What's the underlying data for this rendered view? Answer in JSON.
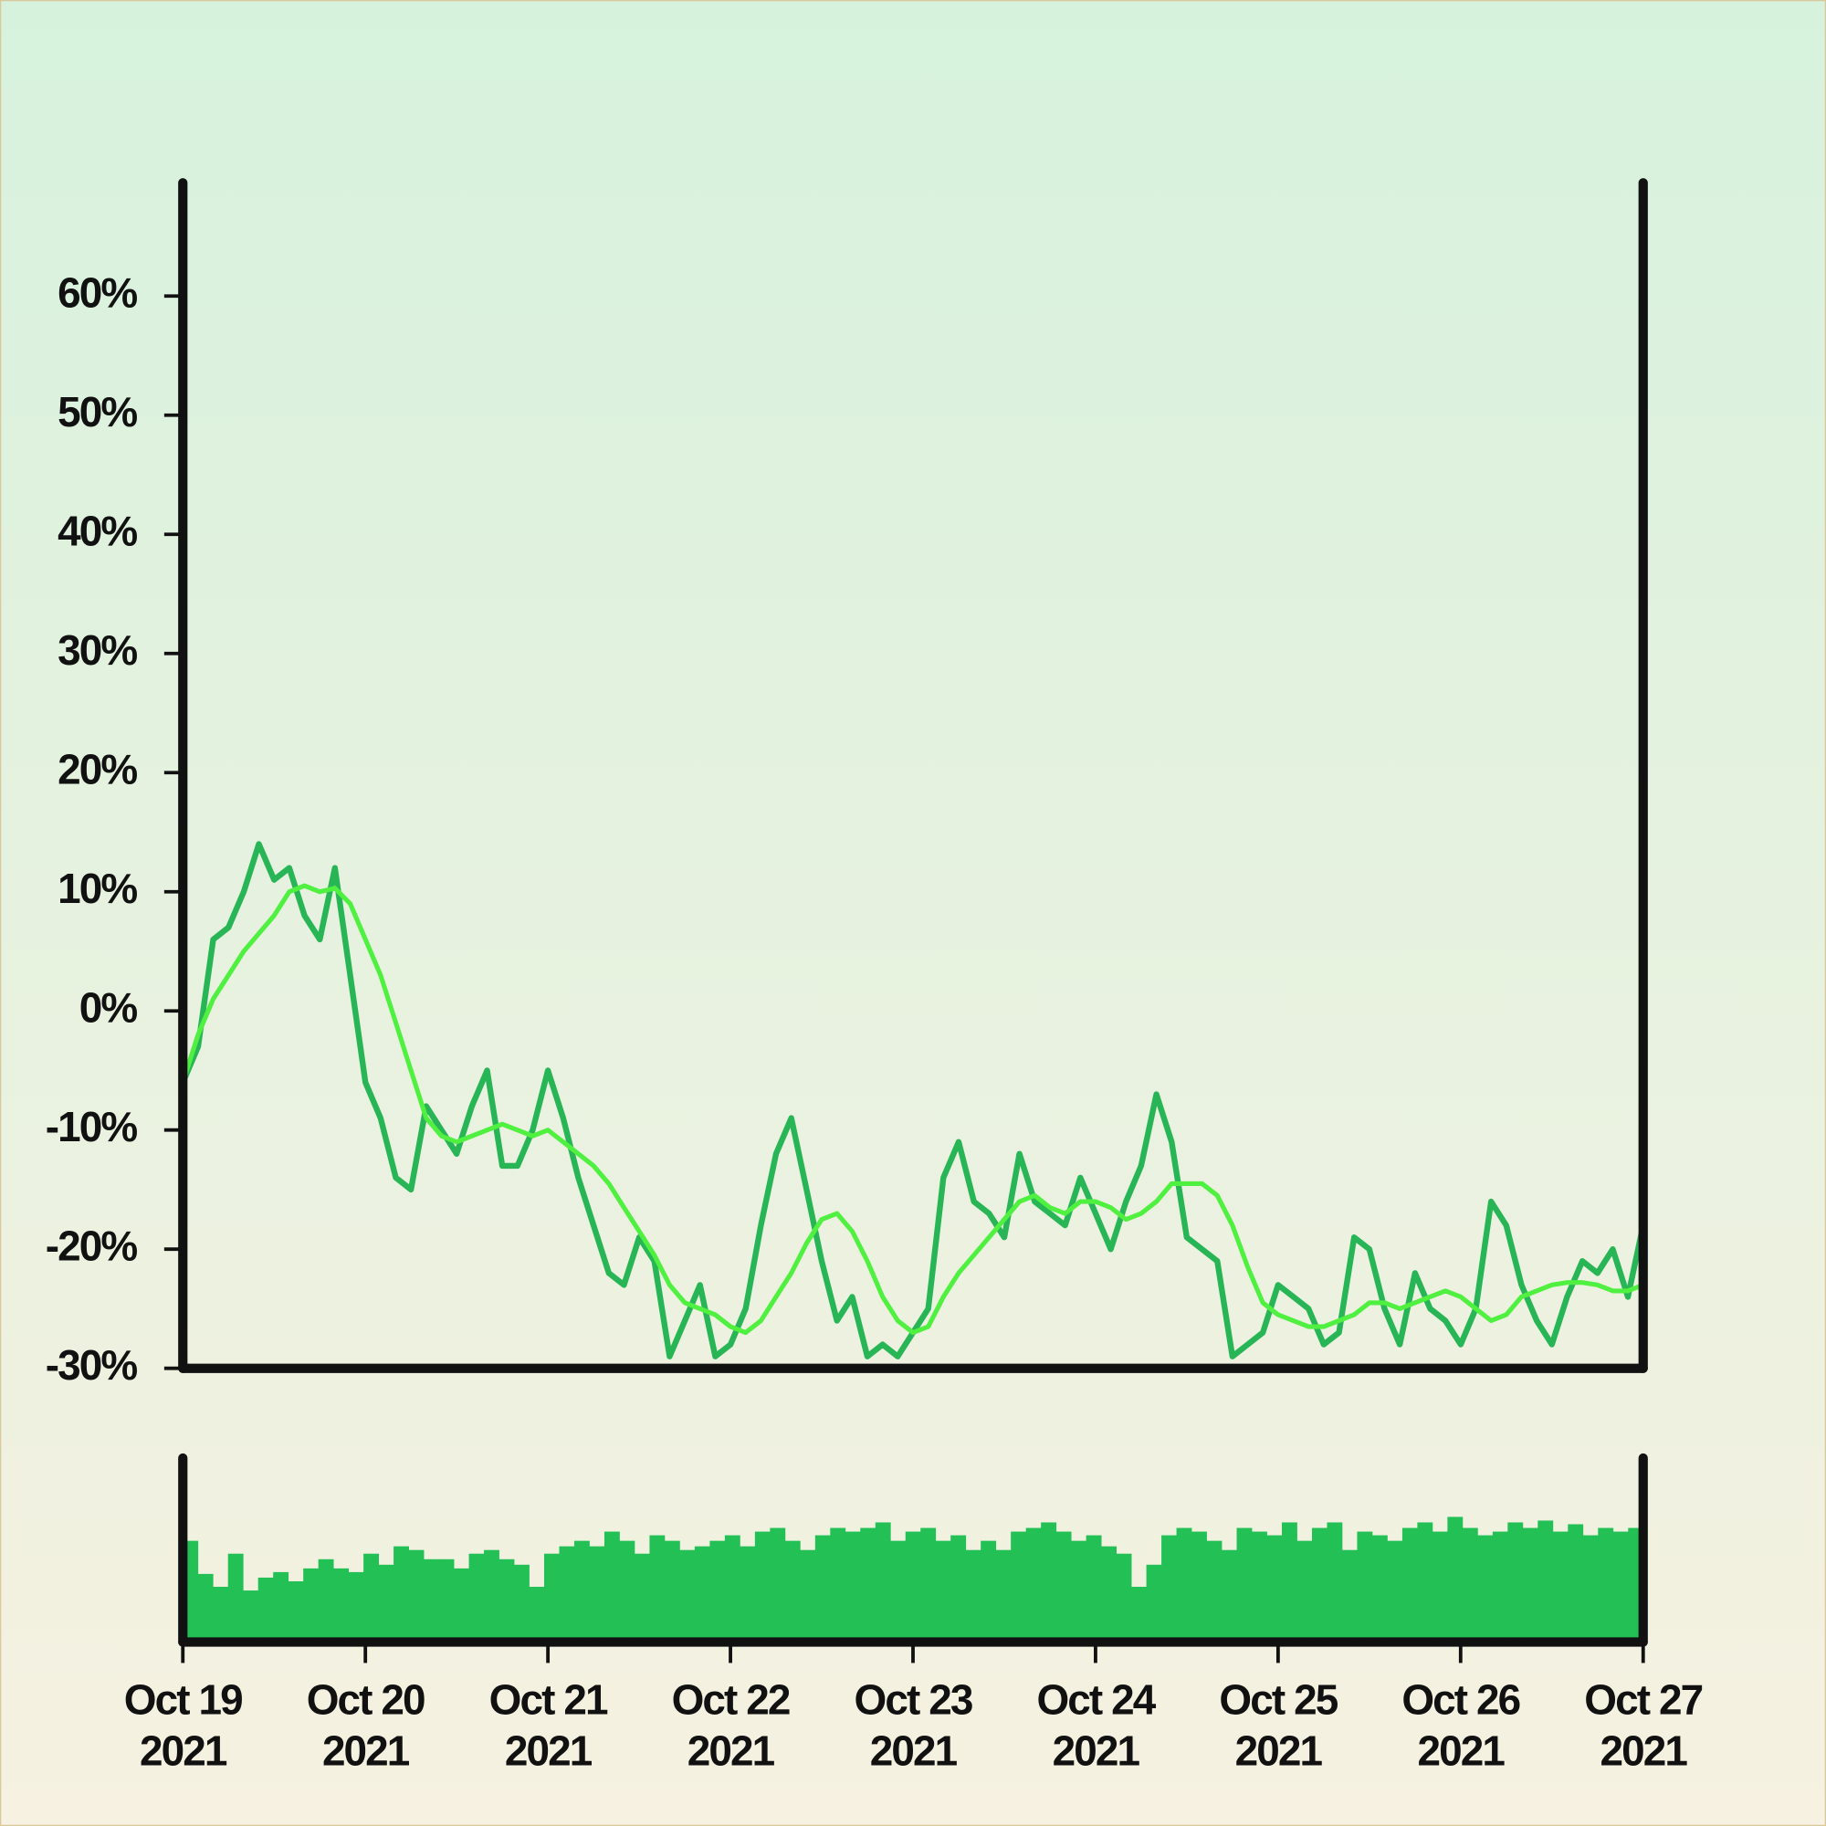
{
  "chart_data": [
    {
      "type": "line",
      "xlim": [
        "2021-10-19",
        "2021-10-27"
      ],
      "ylim": [
        -30,
        69.5
      ],
      "yticks": [
        {
          "value": -30,
          "label": "-30%"
        },
        {
          "value": -20,
          "label": "-20%"
        },
        {
          "value": -10,
          "label": "-10%"
        },
        {
          "value": 0,
          "label": "0%"
        },
        {
          "value": 10,
          "label": "10%"
        },
        {
          "value": 20,
          "label": "20%"
        },
        {
          "value": 30,
          "label": "30%"
        },
        {
          "value": 40,
          "label": "40%"
        },
        {
          "value": 50,
          "label": "50%"
        },
        {
          "value": 60,
          "label": "60%"
        }
      ],
      "series": [
        {
          "color": "#27b556",
          "values": [
            -6,
            -3,
            6,
            7,
            10,
            14,
            11,
            12,
            8,
            6,
            12,
            3,
            -6,
            -9,
            -14,
            -15,
            -8,
            -10,
            -12,
            -8,
            -5,
            -13,
            -13,
            -10,
            -5,
            -9,
            -14,
            -18,
            -22,
            -23,
            -19,
            -21,
            -29,
            -26,
            -23,
            -29,
            -28,
            -25,
            -18,
            -12,
            -9,
            -15,
            -21,
            -26,
            -24,
            -29,
            -28,
            -29,
            -27,
            -25,
            -14,
            -11,
            -16,
            -17,
            -19,
            -12,
            -16,
            -17,
            -18,
            -14,
            -17,
            -20,
            -16,
            -13,
            -7,
            -11,
            -19,
            -20,
            -21,
            -29,
            -28,
            -27,
            -23,
            -24,
            -25,
            -28,
            -27,
            -19,
            -20,
            -25,
            -28,
            -22,
            -25,
            -26,
            -28,
            -25,
            -16,
            -18,
            -23,
            -26,
            -28,
            -24,
            -21,
            -22,
            -20,
            -24,
            -18
          ]
        },
        {
          "color": "#4ff040",
          "values": [
            -6,
            -2,
            1,
            3,
            5,
            6.5,
            8,
            10,
            10.5,
            10,
            10.3,
            9,
            6,
            3,
            -1,
            -5,
            -9,
            -10.5,
            -11,
            -10.5,
            -10,
            -9.5,
            -10,
            -10.5,
            -10,
            -11,
            -12,
            -13,
            -14.5,
            -16.5,
            -18.5,
            -20.5,
            -23,
            -24.5,
            -25,
            -25.5,
            -26.5,
            -27,
            -26,
            -24,
            -22,
            -19.5,
            -17.5,
            -17,
            -18.5,
            -21,
            -24,
            -26,
            -27,
            -26.5,
            -24,
            -22,
            -20.5,
            -19,
            -17.5,
            -16,
            -15.5,
            -16.5,
            -17,
            -16,
            -16,
            -16.5,
            -17.5,
            -17,
            -16,
            -14.5,
            -14.5,
            -14.5,
            -15.5,
            -18,
            -21.5,
            -24.5,
            -25.5,
            -26,
            -26.5,
            -26.5,
            -26,
            -25.5,
            -24.5,
            -24.5,
            -25,
            -24.5,
            -24,
            -23.5,
            -24,
            -25,
            -26,
            -25.5,
            -24,
            -23.5,
            -23,
            -22.8,
            -22.8,
            -23,
            -23.5,
            -23.5,
            -23
          ]
        }
      ]
    },
    {
      "type": "bar",
      "xlim": [
        "2021-10-19",
        "2021-10-27"
      ],
      "ylim": [
        0,
        100
      ],
      "color": "#22c055",
      "xticks": [
        {
          "value": "2021-10-19",
          "label": "Oct 19\n2021"
        },
        {
          "value": "2021-10-20",
          "label": "Oct 20\n2021"
        },
        {
          "value": "2021-10-21",
          "label": "Oct 21\n2021"
        },
        {
          "value": "2021-10-22",
          "label": "Oct 22\n2021"
        },
        {
          "value": "2021-10-23",
          "label": "Oct 23\n2021"
        },
        {
          "value": "2021-10-24",
          "label": "Oct 24\n2021"
        },
        {
          "value": "2021-10-25",
          "label": "Oct 25\n2021"
        },
        {
          "value": "2021-10-26",
          "label": "Oct 26\n2021"
        },
        {
          "value": "2021-10-27",
          "label": "Oct 27\n2021"
        }
      ],
      "values": [
        55,
        37,
        30,
        48,
        28,
        35,
        38,
        33,
        40,
        45,
        40,
        38,
        48,
        42,
        52,
        50,
        45,
        45,
        40,
        48,
        50,
        45,
        42,
        30,
        48,
        52,
        55,
        52,
        60,
        55,
        48,
        58,
        55,
        50,
        52,
        55,
        58,
        52,
        60,
        62,
        55,
        50,
        58,
        62,
        60,
        62,
        65,
        55,
        60,
        62,
        55,
        58,
        50,
        55,
        50,
        60,
        62,
        65,
        60,
        55,
        58,
        52,
        48,
        30,
        42,
        58,
        62,
        60,
        55,
        50,
        62,
        60,
        58,
        65,
        55,
        62,
        65,
        50,
        60,
        58,
        55,
        62,
        65,
        60,
        68,
        62,
        58,
        60,
        65,
        62,
        66,
        60,
        64,
        58,
        62,
        60,
        62
      ]
    }
  ]
}
